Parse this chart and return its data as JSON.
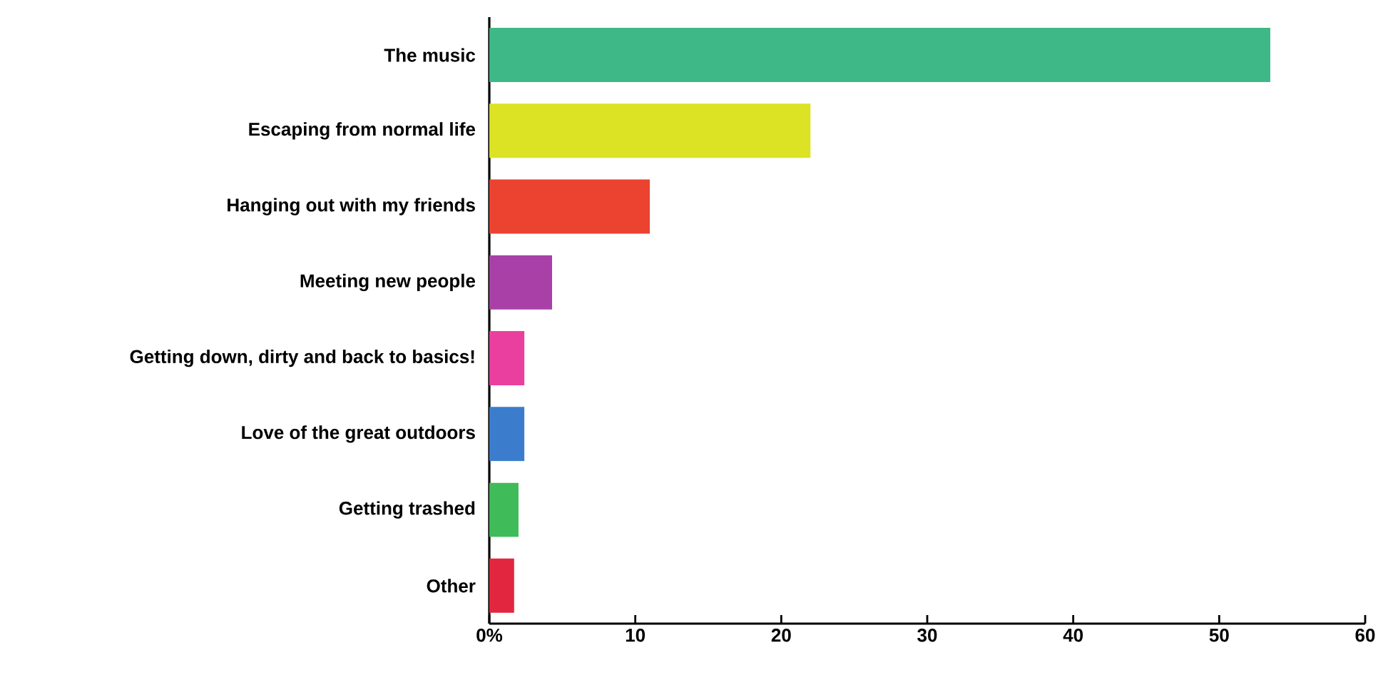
{
  "chart_data": {
    "type": "bar",
    "orientation": "horizontal",
    "categories": [
      "The music",
      "Escaping from normal life",
      "Hanging out with my friends",
      "Meeting new people",
      "Getting down, dirty and back to basics!",
      "Love of the great outdoors",
      "Getting trashed",
      "Other"
    ],
    "values": [
      53.5,
      22.0,
      11.0,
      4.3,
      2.4,
      2.4,
      2.0,
      1.7
    ],
    "colors": [
      "#3db886",
      "#dbe324",
      "#ec4330",
      "#a840a8",
      "#ea3f9e",
      "#3b7dcc",
      "#3fbb5a",
      "#e3263f"
    ],
    "xlim": [
      0,
      60
    ],
    "xticks": [
      {
        "value": 0,
        "label": "0%"
      },
      10,
      20,
      30,
      40,
      50,
      60
    ],
    "grid": false
  }
}
